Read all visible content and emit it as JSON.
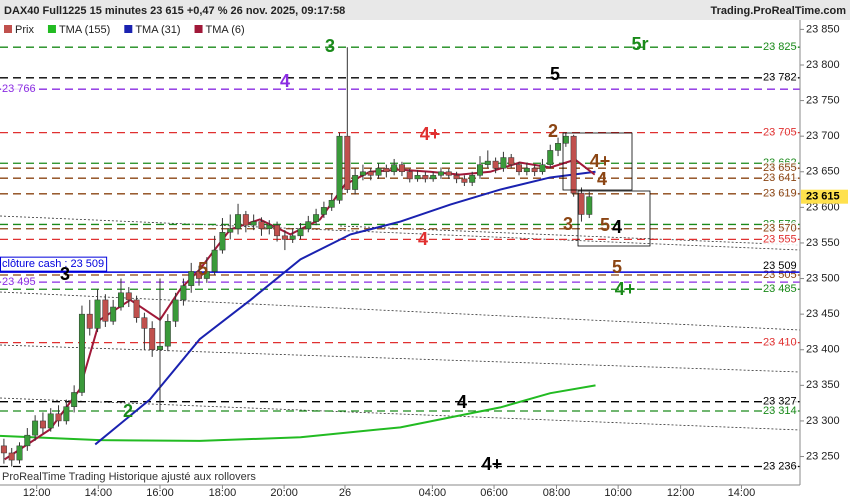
{
  "chart_data": {
    "type": "candlestick",
    "title": "DAX40 Full1225 15 minutes 23 615 +0,47 % 26 nov. 2025, 09:17:58",
    "source": "Trading.ProRealTime.com",
    "footer": "ProRealTime Trading  Historique ajusté aux rollovers",
    "up_color": "#3a9a3a",
    "down_color": "#c0504d",
    "legend": [
      {
        "name": "Prix",
        "color": "#c0504d"
      },
      {
        "name": "TMA (155)",
        "color": "#22bb22"
      },
      {
        "name": "TMA (31)",
        "color": "#1a22b0"
      },
      {
        "name": "TMA (6)",
        "color": "#a01838"
      }
    ],
    "candles": [
      [
        23265,
        23275,
        23240,
        23255
      ],
      [
        23255,
        23262,
        23236,
        23245
      ],
      [
        23245,
        23270,
        23240,
        23265
      ],
      [
        23265,
        23290,
        23258,
        23280
      ],
      [
        23280,
        23308,
        23272,
        23300
      ],
      [
        23300,
        23312,
        23282,
        23290
      ],
      [
        23290,
        23318,
        23285,
        23310
      ],
      [
        23310,
        23322,
        23292,
        23300
      ],
      [
        23300,
        23330,
        23295,
        23320
      ],
      [
        23320,
        23350,
        23312,
        23340
      ],
      [
        23340,
        23462,
        23335,
        23450
      ],
      [
        23450,
        23470,
        23420,
        23430
      ],
      [
        23430,
        23485,
        23425,
        23470
      ],
      [
        23470,
        23478,
        23432,
        23440
      ],
      [
        23440,
        23470,
        23435,
        23460
      ],
      [
        23460,
        23500,
        23455,
        23480
      ],
      [
        23480,
        23488,
        23460,
        23470
      ],
      [
        23470,
        23476,
        23438,
        23445
      ],
      [
        23445,
        23452,
        23400,
        23430
      ],
      [
        23430,
        23440,
        23390,
        23400
      ],
      [
        23400,
        23500,
        23314,
        23405
      ],
      [
        23405,
        23450,
        23398,
        23440
      ],
      [
        23440,
        23480,
        23432,
        23470
      ],
      [
        23470,
        23500,
        23462,
        23490
      ],
      [
        23490,
        23522,
        23480,
        23510
      ],
      [
        23510,
        23518,
        23490,
        23500
      ],
      [
        23500,
        23530,
        23494,
        23510
      ],
      [
        23510,
        23560,
        23505,
        23540
      ],
      [
        23540,
        23585,
        23535,
        23565
      ],
      [
        23565,
        23590,
        23555,
        23570
      ],
      [
        23570,
        23605,
        23562,
        23590
      ],
      [
        23590,
        23595,
        23565,
        23575
      ],
      [
        23575,
        23590,
        23568,
        23580
      ],
      [
        23580,
        23586,
        23560,
        23570
      ],
      [
        23570,
        23582,
        23562,
        23575
      ],
      [
        23575,
        23580,
        23552,
        23560
      ],
      [
        23560,
        23568,
        23540,
        23555
      ],
      [
        23555,
        23570,
        23550,
        23560
      ],
      [
        23560,
        23578,
        23555,
        23570
      ],
      [
        23570,
        23588,
        23565,
        23580
      ],
      [
        23580,
        23598,
        23575,
        23590
      ],
      [
        23590,
        23608,
        23585,
        23600
      ],
      [
        23600,
        23620,
        23595,
        23610
      ],
      [
        23610,
        23705,
        23605,
        23700
      ],
      [
        23700,
        23825,
        23620,
        23625
      ],
      [
        23625,
        23655,
        23618,
        23645
      ],
      [
        23645,
        23660,
        23638,
        23650
      ],
      [
        23650,
        23655,
        23638,
        23645
      ],
      [
        23645,
        23662,
        23640,
        23655
      ],
      [
        23655,
        23660,
        23642,
        23650
      ],
      [
        23650,
        23668,
        23645,
        23660
      ],
      [
        23660,
        23664,
        23644,
        23650
      ],
      [
        23650,
        23654,
        23635,
        23640
      ],
      [
        23640,
        23652,
        23636,
        23645
      ],
      [
        23645,
        23650,
        23635,
        23640
      ],
      [
        23640,
        23650,
        23636,
        23645
      ],
      [
        23645,
        23656,
        23640,
        23650
      ],
      [
        23650,
        23654,
        23640,
        23645
      ],
      [
        23645,
        23650,
        23634,
        23640
      ],
      [
        23640,
        23645,
        23630,
        23635
      ],
      [
        23635,
        23650,
        23630,
        23645
      ],
      [
        23645,
        23672,
        23640,
        23660
      ],
      [
        23660,
        23680,
        23655,
        23665
      ],
      [
        23665,
        23670,
        23648,
        23655
      ],
      [
        23655,
        23678,
        23650,
        23670
      ],
      [
        23670,
        23675,
        23655,
        23660
      ],
      [
        23660,
        23664,
        23645,
        23650
      ],
      [
        23650,
        23662,
        23645,
        23655
      ],
      [
        23655,
        23660,
        23644,
        23650
      ],
      [
        23650,
        23668,
        23646,
        23660
      ],
      [
        23660,
        23688,
        23655,
        23680
      ],
      [
        23680,
        23698,
        23672,
        23690
      ],
      [
        23690,
        23705,
        23685,
        23700
      ],
      [
        23700,
        23702,
        23615,
        23620
      ],
      [
        23620,
        23628,
        23580,
        23590
      ],
      [
        23590,
        23622,
        23585,
        23615
      ]
    ],
    "series": [
      {
        "name": "TMA (155)",
        "color": "#22bb22",
        "x": [
          0,
          12.8,
          25.6,
          38.5,
          51.3,
          57.7,
          64.1,
          70.5,
          76.3
        ],
        "values": [
          23279,
          23273,
          23272,
          23277,
          23291,
          23305,
          23319,
          23339,
          23350
        ]
      },
      {
        "name": "TMA (31)",
        "color": "#1a22b0",
        "x": [
          12.2,
          19.2,
          25.6,
          32.1,
          38.5,
          44.9,
          51.3,
          57.7,
          64.1,
          70.5,
          76.3
        ],
        "values": [
          23267,
          23330,
          23415,
          23470,
          23527,
          23562,
          23580,
          23604,
          23625,
          23642,
          23650
        ]
      },
      {
        "name": "TMA (6)",
        "color": "#a01838",
        "x": [
          0.6,
          6.4,
          10.2,
          12.8,
          16.7,
          20.5,
          23.1,
          25.6,
          29.5,
          33.3,
          37.2,
          41,
          44.2,
          47.4,
          51.2,
          55.1,
          58.9,
          62.8,
          66.6,
          70.5,
          73.7,
          76.2
        ],
        "values": [
          23246,
          23288,
          23344,
          23442,
          23470,
          23442,
          23485,
          23513,
          23569,
          23583,
          23562,
          23583,
          23632,
          23650,
          23653,
          23650,
          23646,
          23650,
          23663,
          23656,
          23667,
          23646
        ]
      }
    ],
    "levels": [
      {
        "value": 23825,
        "label": "23 825",
        "color": "#1a8a1a",
        "side": "right"
      },
      {
        "value": 23782,
        "label": "23 782",
        "color": "#000000",
        "side": "right"
      },
      {
        "value": 23766,
        "label": "23 766",
        "color": "#8a2be2",
        "side": "left"
      },
      {
        "value": 23705,
        "label": "23 705",
        "color": "#e03030",
        "side": "right"
      },
      {
        "value": 23662,
        "label": "23 662",
        "color": "#1a8a1a",
        "side": "right"
      },
      {
        "value": 23655,
        "label": "23 655",
        "color": "#8b4513",
        "side": "right"
      },
      {
        "value": 23641,
        "label": "23 641",
        "color": "#8b4513",
        "side": "right"
      },
      {
        "value": 23619,
        "label": "23 619",
        "color": "#8b4513",
        "side": "right"
      },
      {
        "value": 23576,
        "label": "23 576",
        "color": "#1a8a1a",
        "side": "right"
      },
      {
        "value": 23570,
        "label": "23 570",
        "color": "#8b4513",
        "side": "right"
      },
      {
        "value": 23555,
        "label": "23 555",
        "color": "#e03030",
        "side": "right"
      },
      {
        "value": 23505,
        "label": "23 505",
        "color": "#8b4513",
        "side": "right"
      },
      {
        "value": 23495,
        "label": "23 495",
        "color": "#8a2be2",
        "side": "left"
      },
      {
        "value": 23485,
        "label": "23 485",
        "color": "#1a8a1a",
        "side": "right"
      },
      {
        "value": 23410,
        "label": "23 410",
        "color": "#e03030",
        "side": "right"
      },
      {
        "value": 23327,
        "label": "23 327",
        "color": "#000000",
        "side": "right"
      },
      {
        "value": 23314,
        "label": "23 314",
        "color": "#1a8a1a",
        "side": "right"
      },
      {
        "value": 23236,
        "label": "23 236",
        "color": "#000000",
        "side": "right"
      }
    ],
    "cash_close": {
      "value": 23509,
      "label": "clôture cash : 23 509",
      "axis_label": "23 509",
      "color": "#0000dd"
    },
    "last_price": {
      "value": 23615,
      "label": "23 615"
    },
    "annotations": [
      {
        "text": "3",
        "color": "#1a8a1a"
      },
      {
        "text": "5r",
        "color": "#1a8a1a"
      },
      {
        "text": "5",
        "color": "#000000"
      },
      {
        "text": "4",
        "color": "#8a2be2"
      },
      {
        "text": "4+",
        "color": "#e03030"
      },
      {
        "text": "2",
        "color": "#8b4513"
      },
      {
        "text": "4+",
        "color": "#8b4513"
      },
      {
        "text": "4",
        "color": "#8b4513"
      },
      {
        "text": "3",
        "color": "#8b4513"
      },
      {
        "text": "5",
        "color": "#8b4513"
      },
      {
        "text": "4",
        "color": "#000000"
      },
      {
        "text": "4",
        "color": "#e03030"
      },
      {
        "text": "5",
        "color": "#8b4513"
      },
      {
        "text": "4+",
        "color": "#1a8a1a"
      },
      {
        "text": "3",
        "color": "#000000"
      },
      {
        "text": "5",
        "color": "#8b4513"
      },
      {
        "text": "2",
        "color": "#1a8a1a"
      },
      {
        "text": "4",
        "color": "#000000"
      },
      {
        "text": "4+",
        "color": "#000000"
      }
    ],
    "xlim": [
      0,
      102.5
    ],
    "xticks": [
      {
        "value": 4.7,
        "label": "12:00"
      },
      {
        "value": 12.6,
        "label": "14:00"
      },
      {
        "value": 20.5,
        "label": "16:00"
      },
      {
        "value": 28.5,
        "label": "18:00"
      },
      {
        "value": 36.4,
        "label": "20:00"
      },
      {
        "value": 44.2,
        "label": "26"
      },
      {
        "value": 55.4,
        "label": "04:00"
      },
      {
        "value": 63.3,
        "label": "06:00"
      },
      {
        "value": 71.3,
        "label": "08:00"
      },
      {
        "value": 79.2,
        "label": "10:00"
      },
      {
        "value": 87.2,
        "label": "12:00"
      },
      {
        "value": 95.0,
        "label": "14:00"
      }
    ],
    "ylim": [
      23210,
      23866
    ],
    "yticks": [
      {
        "value": 23250,
        "label": "23 250"
      },
      {
        "value": 23300,
        "label": "23 300"
      },
      {
        "value": 23350,
        "label": "23 350"
      },
      {
        "value": 23400,
        "label": "23 400"
      },
      {
        "value": 23450,
        "label": "23 450"
      },
      {
        "value": 23500,
        "label": "23 500"
      },
      {
        "value": 23550,
        "label": "23 550"
      },
      {
        "value": 23600,
        "label": "23 600"
      },
      {
        "value": 23650,
        "label": "23 650"
      },
      {
        "value": 23700,
        "label": "23 700"
      },
      {
        "value": 23750,
        "label": "23 750"
      },
      {
        "value": 23800,
        "label": "23 800"
      },
      {
        "value": 23850,
        "label": "23 850"
      }
    ]
  }
}
